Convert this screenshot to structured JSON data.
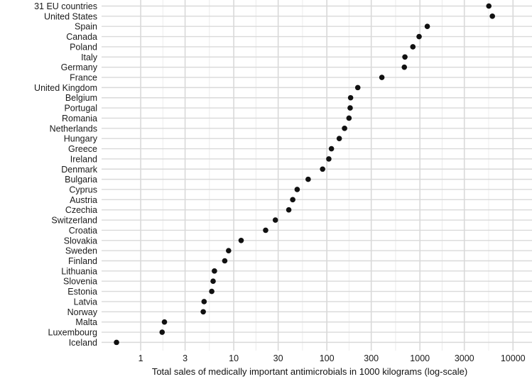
{
  "chart_data": {
    "type": "scatter",
    "title": "",
    "xlabel": "Total sales of medically important antimicrobials in 1000 kilograms (log-scale)",
    "ylabel": "",
    "x_scale": "log10",
    "xlim": [
      0.38,
      16000
    ],
    "grid": true,
    "xticks": [
      1,
      3,
      10,
      30,
      100,
      300,
      1000,
      3000,
      10000
    ],
    "xtick_labels": [
      "1",
      "3",
      "10",
      "30",
      "100",
      "300",
      "1000",
      "3000",
      "10000"
    ],
    "colors": {
      "point": "#111111",
      "grid": "#d9d9d9",
      "grid_minor": "#ececec"
    },
    "points": [
      {
        "country": "31 EU countries",
        "value": 5500
      },
      {
        "country": "United States",
        "value": 6000
      },
      {
        "country": "Spain",
        "value": 1200
      },
      {
        "country": "Canada",
        "value": 980
      },
      {
        "country": "Poland",
        "value": 840
      },
      {
        "country": "Italy",
        "value": 690
      },
      {
        "country": "Germany",
        "value": 680
      },
      {
        "country": "France",
        "value": 390
      },
      {
        "country": "United Kingdom",
        "value": 215
      },
      {
        "country": "Belgium",
        "value": 180
      },
      {
        "country": "Portugal",
        "value": 178
      },
      {
        "country": "Romania",
        "value": 173
      },
      {
        "country": "Netherlands",
        "value": 155
      },
      {
        "country": "Hungary",
        "value": 136
      },
      {
        "country": "Greece",
        "value": 112
      },
      {
        "country": "Ireland",
        "value": 105
      },
      {
        "country": "Denmark",
        "value": 90
      },
      {
        "country": "Bulgaria",
        "value": 63
      },
      {
        "country": "Cyprus",
        "value": 48
      },
      {
        "country": "Austria",
        "value": 43
      },
      {
        "country": "Czechia",
        "value": 39
      },
      {
        "country": "Switzerland",
        "value": 28
      },
      {
        "country": "Croatia",
        "value": 22
      },
      {
        "country": "Slovakia",
        "value": 12
      },
      {
        "country": "Sweden",
        "value": 8.8
      },
      {
        "country": "Finland",
        "value": 8.0
      },
      {
        "country": "Lithuania",
        "value": 6.2
      },
      {
        "country": "Slovenia",
        "value": 6.0
      },
      {
        "country": "Estonia",
        "value": 5.8
      },
      {
        "country": "Latvia",
        "value": 4.8
      },
      {
        "country": "Norway",
        "value": 4.7
      },
      {
        "country": "Malta",
        "value": 1.8
      },
      {
        "country": "Luxembourg",
        "value": 1.7
      },
      {
        "country": "Iceland",
        "value": 0.55
      }
    ]
  }
}
